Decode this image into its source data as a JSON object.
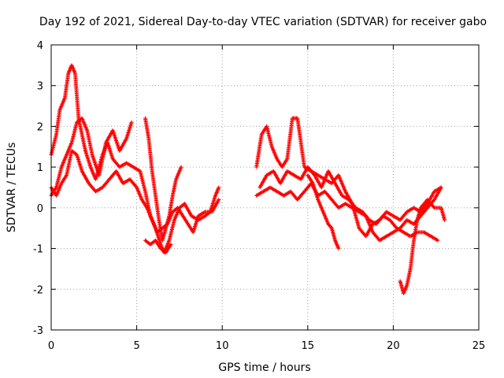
{
  "chart_data": {
    "type": "scatter",
    "title": "Day 192 of 2021, Sidereal Day-to-day VTEC variation (SDTVAR) for receiver gabo",
    "xlabel": "GPS time / hours",
    "ylabel": "SDTVAR / TECUs",
    "xlim": [
      0,
      25
    ],
    "ylim": [
      -3,
      4
    ],
    "xticks": [
      0,
      5,
      10,
      15,
      20,
      25
    ],
    "yticks": [
      -3,
      -2,
      -1,
      0,
      1,
      2,
      3,
      4
    ],
    "grid": true,
    "marker": "+",
    "series": [
      {
        "name": "trace-a",
        "color": "#ff0000",
        "x": [
          0.0,
          0.3,
          0.5,
          0.8,
          1.0,
          1.2,
          1.4,
          1.6,
          1.8,
          2.0,
          2.3,
          2.6,
          3.0,
          3.3,
          3.6,
          4.0,
          4.4,
          4.8,
          5.2,
          5.5,
          5.8,
          6.1,
          6.4,
          6.6,
          6.9,
          7.2,
          7.5,
          7.8,
          8.2,
          8.6,
          9.0,
          9.3,
          9.6,
          9.8
        ],
        "y": [
          1.3,
          1.8,
          2.4,
          2.7,
          3.3,
          3.5,
          3.3,
          2.2,
          1.8,
          1.4,
          1.0,
          0.7,
          1.3,
          1.6,
          1.2,
          1.0,
          1.1,
          1.0,
          0.9,
          0.4,
          -0.2,
          -0.5,
          -0.9,
          -1.1,
          -0.8,
          -0.3,
          0.0,
          0.1,
          -0.2,
          -0.3,
          -0.2,
          -0.1,
          0.3,
          0.5
        ]
      },
      {
        "name": "trace-b",
        "color": "#ff0000",
        "x": [
          0.0,
          0.3,
          0.6,
          0.9,
          1.2,
          1.5,
          1.8,
          2.1,
          2.4,
          2.8,
          3.2,
          3.6,
          4.0,
          4.4,
          4.7
        ],
        "y": [
          0.3,
          0.5,
          1.0,
          1.3,
          1.6,
          2.1,
          2.2,
          1.9,
          1.3,
          0.8,
          1.6,
          1.9,
          1.4,
          1.7,
          2.1
        ]
      },
      {
        "name": "trace-c",
        "color": "#ff0000",
        "x": [
          0.0,
          0.3,
          0.6,
          0.9,
          1.2,
          1.5,
          1.8,
          2.2,
          2.6,
          3.0,
          3.4,
          3.8,
          4.2,
          4.6,
          5.0,
          5.3,
          5.6,
          5.9,
          6.2,
          6.5,
          6.8,
          7.1,
          7.4,
          7.7,
          8.0,
          8.3,
          8.6,
          9.0,
          9.4,
          9.8
        ],
        "y": [
          0.5,
          0.3,
          0.6,
          0.8,
          1.4,
          1.3,
          0.9,
          0.6,
          0.4,
          0.5,
          0.7,
          0.9,
          0.6,
          0.7,
          0.5,
          0.2,
          0.0,
          -0.3,
          -0.6,
          -0.5,
          -0.4,
          -0.1,
          0.0,
          -0.2,
          -0.4,
          -0.6,
          -0.2,
          -0.1,
          -0.1,
          0.2
        ]
      },
      {
        "name": "trace-d",
        "color": "#ff0000",
        "x": [
          5.5,
          5.7,
          5.9,
          6.1,
          6.3,
          6.5,
          6.7,
          6.9,
          7.1,
          7.3,
          7.6
        ],
        "y": [
          2.2,
          1.7,
          0.9,
          0.3,
          -0.3,
          -0.8,
          -0.5,
          -0.2,
          0.3,
          0.7,
          1.0
        ]
      },
      {
        "name": "trace-e",
        "color": "#ff0000",
        "x": [
          5.5,
          5.8,
          6.1,
          6.4,
          6.7,
          7.0
        ],
        "y": [
          -0.8,
          -0.9,
          -0.8,
          -1.0,
          -1.1,
          -0.9
        ]
      },
      {
        "name": "trace-f",
        "color": "#ff0000",
        "x": [
          12.0,
          12.3,
          12.6,
          12.9,
          13.2,
          13.5,
          13.8,
          14.1,
          14.4,
          14.8,
          15.2,
          15.6,
          16.0,
          16.4,
          16.8,
          17.2,
          17.6,
          18.0,
          18.4,
          18.8,
          19.2,
          19.6,
          20.0,
          20.4,
          20.8,
          21.2,
          21.6,
          22.0,
          22.4,
          22.8
        ],
        "y": [
          1.0,
          1.8,
          2.0,
          1.5,
          1.2,
          1.0,
          1.2,
          2.2,
          2.2,
          1.0,
          0.9,
          0.8,
          0.7,
          0.6,
          0.8,
          0.4,
          0.1,
          -0.5,
          -0.7,
          -0.4,
          -0.3,
          -0.1,
          -0.2,
          -0.3,
          -0.1,
          0.0,
          -0.1,
          0.1,
          0.4,
          0.5
        ]
      },
      {
        "name": "trace-g",
        "color": "#ff0000",
        "x": [
          12.0,
          12.4,
          12.8,
          13.2,
          13.6,
          14.0,
          14.4,
          14.8,
          15.2,
          15.6,
          16.0,
          16.4,
          16.8,
          17.2,
          17.6,
          18.0,
          18.4,
          18.8,
          19.2,
          19.6,
          20.0,
          20.4,
          20.8,
          21.2,
          21.6,
          22.0,
          22.4,
          22.8
        ],
        "y": [
          0.3,
          0.4,
          0.5,
          0.4,
          0.3,
          0.4,
          0.2,
          0.4,
          0.6,
          0.3,
          0.4,
          0.2,
          0.0,
          0.1,
          0.0,
          -0.1,
          -0.2,
          -0.6,
          -0.8,
          -0.7,
          -0.6,
          -0.5,
          -0.3,
          -0.4,
          -0.2,
          0.0,
          0.2,
          0.5
        ]
      },
      {
        "name": "trace-h",
        "color": "#ff0000",
        "x": [
          12.2,
          12.6,
          13.0,
          13.4,
          13.8,
          14.2,
          14.6,
          15.0,
          15.4,
          15.8,
          16.2,
          16.6,
          17.0,
          17.4,
          17.8,
          18.2,
          18.6,
          19.0,
          19.4,
          19.8,
          20.2,
          20.6,
          21.0,
          21.4,
          21.8,
          22.2,
          22.6
        ],
        "y": [
          0.5,
          0.8,
          0.9,
          0.6,
          0.9,
          0.8,
          0.7,
          1.0,
          0.8,
          0.5,
          0.9,
          0.6,
          0.3,
          0.2,
          0.0,
          -0.1,
          -0.3,
          -0.4,
          -0.2,
          -0.3,
          -0.5,
          -0.6,
          -0.7,
          -0.6,
          -0.6,
          -0.7,
          -0.8
        ]
      },
      {
        "name": "trace-i",
        "color": "#ff0000",
        "x": [
          15.0,
          15.3,
          15.6,
          15.9,
          16.2,
          16.4,
          16.6,
          16.8
        ],
        "y": [
          0.8,
          0.6,
          0.2,
          -0.1,
          -0.4,
          -0.5,
          -0.8,
          -1.0
        ]
      },
      {
        "name": "trace-j",
        "color": "#ff0000",
        "x": [
          20.4,
          20.6,
          20.8,
          21.0,
          21.2,
          21.4,
          21.6,
          22.0,
          22.4,
          22.8,
          23.0
        ],
        "y": [
          -1.8,
          -2.1,
          -1.9,
          -1.5,
          -0.8,
          -0.3,
          0.0,
          0.2,
          0.0,
          0.0,
          -0.3
        ]
      }
    ]
  }
}
